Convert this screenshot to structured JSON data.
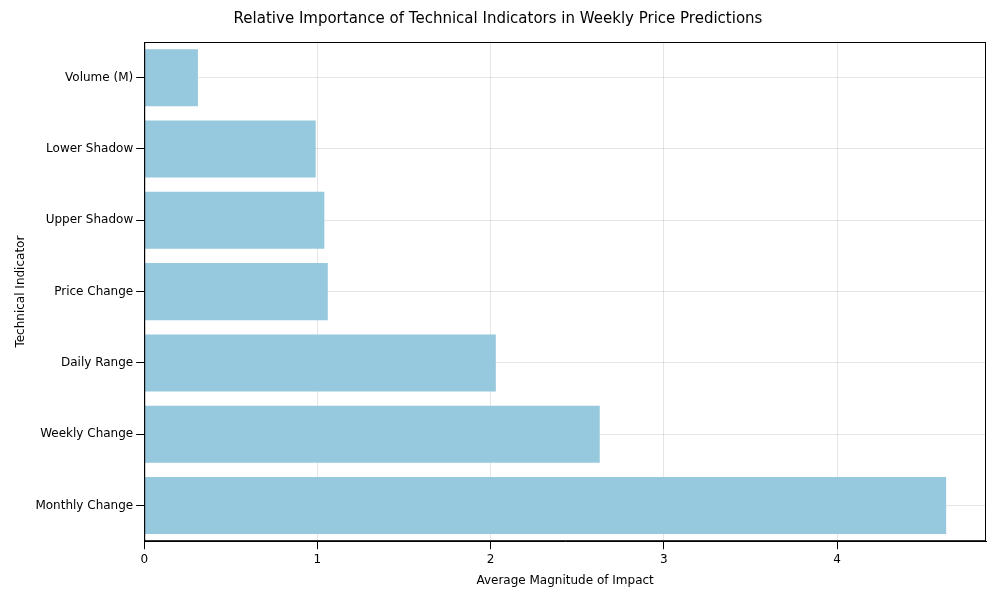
{
  "chart_data": {
    "type": "bar",
    "orientation": "horizontal",
    "title": "Relative Importance of Technical Indicators in Weekly Price Predictions",
    "x_label": "Average Magnitude of Impact",
    "y_label": "Technical Indicator",
    "categories": [
      "Volume (M)",
      "Lower Shadow",
      "Upper Shadow",
      "Price Change",
      "Daily Range",
      "Weekly Change",
      "Monthly Change"
    ],
    "values": [
      0.31,
      0.99,
      1.04,
      1.06,
      2.03,
      2.63,
      4.63
    ],
    "color": "#96c9dd",
    "xlim": [
      0,
      4.86
    ],
    "xticks": [
      0,
      1,
      2,
      3,
      4
    ],
    "grid": true
  }
}
